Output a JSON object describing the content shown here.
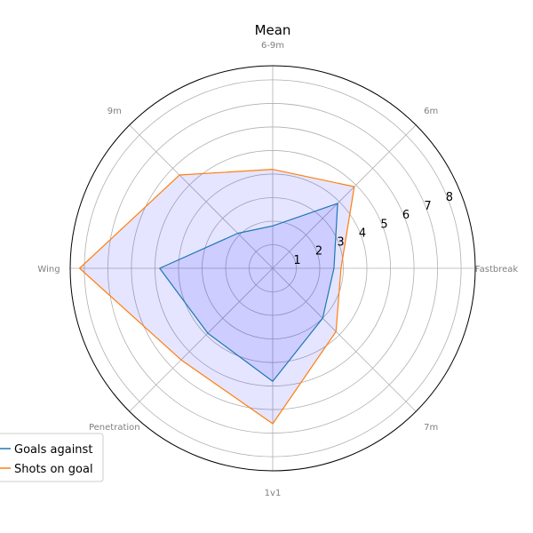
{
  "chart_data": {
    "type": "radar",
    "title": "Mean",
    "categories": [
      "Fastbreak",
      "6m",
      "6-9m",
      "9m",
      "Wing",
      "Penetration",
      "1v1",
      "7m"
    ],
    "r_ticks": [
      "1",
      "2",
      "3",
      "4",
      "5",
      "6",
      "7",
      "8"
    ],
    "rlim": [
      0,
      8.6
    ],
    "grid": true,
    "legend_position": "bottom-left",
    "series": [
      {
        "name": "Goals against",
        "color": "#1f77b4",
        "values": [
          2.6,
          3.9,
          1.8,
          2.1,
          4.8,
          3.9,
          4.8,
          3.0
        ]
      },
      {
        "name": "Shots on goal",
        "color": "#ff7f0e",
        "values": [
          2.9,
          4.9,
          4.2,
          5.6,
          8.2,
          5.5,
          6.6,
          3.8
        ]
      }
    ],
    "fills": [
      {
        "series": 1,
        "color": "#0000ff",
        "opacity": 0.1
      },
      {
        "series": 0,
        "color": "#0000ff",
        "opacity": 0.1
      }
    ]
  }
}
